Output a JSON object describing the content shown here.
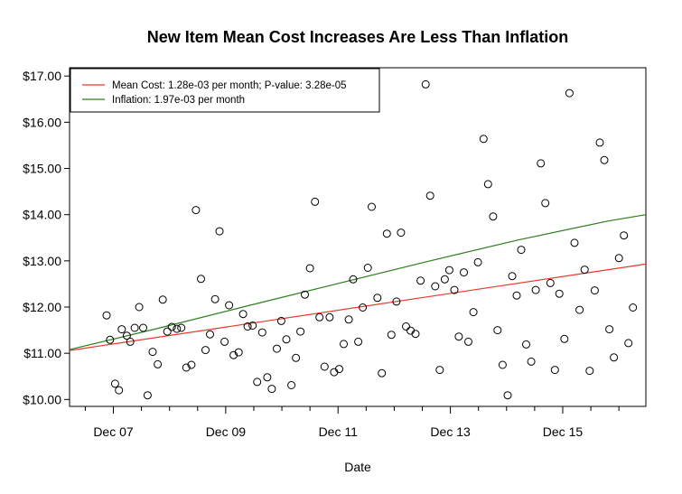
{
  "chart_data": {
    "type": "scatter",
    "title": "New Item Mean Cost Increases Are Less Than Inflation",
    "xlabel": "Date",
    "ylabel": "",
    "x_unit": "months",
    "xlim": [
      -0.78,
      9.48
    ],
    "ylim": [
      9.85,
      17.18
    ],
    "x_ticks": [
      {
        "value": 0,
        "label": "Dec 07"
      },
      {
        "value": 2,
        "label": "Dec 09"
      },
      {
        "value": 4,
        "label": "Dec 11"
      },
      {
        "value": 6,
        "label": "Dec 13"
      },
      {
        "value": 8,
        "label": "Dec 15"
      }
    ],
    "x_minor_ticks": [
      -0.5,
      0.5,
      1,
      1.5,
      2.5,
      3,
      3.5,
      4.5,
      5,
      5.5,
      6.5,
      7,
      7.5,
      8.5,
      9
    ],
    "y_ticks": [
      {
        "value": 10,
        "label": "$10.00"
      },
      {
        "value": 11,
        "label": "$11.00"
      },
      {
        "value": 12,
        "label": "$12.00"
      },
      {
        "value": 13,
        "label": "$13.00"
      },
      {
        "value": 14,
        "label": "$14.00"
      },
      {
        "value": 15,
        "label": "$15.00"
      },
      {
        "value": 16,
        "label": "$16.00"
      },
      {
        "value": 17,
        "label": "$17.00"
      }
    ],
    "legend": {
      "position": "top-left",
      "entries": [
        {
          "label": "Mean Cost: 1.28e-03 per month; P-value: 3.28e-05",
          "color": "#e8382c"
        },
        {
          "label": "Inflation: 1.97e-03 per month",
          "color": "#2e7d1e"
        }
      ]
    },
    "series": [
      {
        "kind": "points",
        "marker": "open-circle",
        "color": "#000000",
        "points": [
          [
            -0.12,
            11.82
          ],
          [
            -0.06,
            11.29
          ],
          [
            0.03,
            10.34
          ],
          [
            0.1,
            10.2
          ],
          [
            0.15,
            11.52
          ],
          [
            0.24,
            11.38
          ],
          [
            0.3,
            11.25
          ],
          [
            0.38,
            11.55
          ],
          [
            0.46,
            12.0
          ],
          [
            0.53,
            11.55
          ],
          [
            0.61,
            10.09
          ],
          [
            0.7,
            11.03
          ],
          [
            0.79,
            10.76
          ],
          [
            0.88,
            12.16
          ],
          [
            0.96,
            11.47
          ],
          [
            1.04,
            11.57
          ],
          [
            1.13,
            11.53
          ],
          [
            1.21,
            11.55
          ],
          [
            1.3,
            10.69
          ],
          [
            1.39,
            10.75
          ],
          [
            1.47,
            14.1
          ],
          [
            1.56,
            12.61
          ],
          [
            1.64,
            11.07
          ],
          [
            1.72,
            11.41
          ],
          [
            1.81,
            12.17
          ],
          [
            1.89,
            13.64
          ],
          [
            1.98,
            11.25
          ],
          [
            2.06,
            12.04
          ],
          [
            2.14,
            10.96
          ],
          [
            2.23,
            11.02
          ],
          [
            2.31,
            11.85
          ],
          [
            2.39,
            11.58
          ],
          [
            2.48,
            11.6
          ],
          [
            2.56,
            10.38
          ],
          [
            2.65,
            11.45
          ],
          [
            2.74,
            10.48
          ],
          [
            2.82,
            10.23
          ],
          [
            2.91,
            11.1
          ],
          [
            2.99,
            11.7
          ],
          [
            3.08,
            11.3
          ],
          [
            3.17,
            10.31
          ],
          [
            3.25,
            10.9
          ],
          [
            3.33,
            11.47
          ],
          [
            3.41,
            12.27
          ],
          [
            3.5,
            12.84
          ],
          [
            3.59,
            14.28
          ],
          [
            3.67,
            11.78
          ],
          [
            3.76,
            10.71
          ],
          [
            3.85,
            11.78
          ],
          [
            3.93,
            10.59
          ],
          [
            4.02,
            10.66
          ],
          [
            4.1,
            11.2
          ],
          [
            4.19,
            11.73
          ],
          [
            4.27,
            12.6
          ],
          [
            4.36,
            11.25
          ],
          [
            4.44,
            11.99
          ],
          [
            4.53,
            12.85
          ],
          [
            4.6,
            14.17
          ],
          [
            4.7,
            12.2
          ],
          [
            4.78,
            10.57
          ],
          [
            4.87,
            13.59
          ],
          [
            4.95,
            11.4
          ],
          [
            5.04,
            12.12
          ],
          [
            5.12,
            13.61
          ],
          [
            5.21,
            11.58
          ],
          [
            5.29,
            11.49
          ],
          [
            5.38,
            11.42
          ],
          [
            5.47,
            12.57
          ],
          [
            5.56,
            16.82
          ],
          [
            5.64,
            14.41
          ],
          [
            5.73,
            12.45
          ],
          [
            5.81,
            10.64
          ],
          [
            5.9,
            12.6
          ],
          [
            5.98,
            12.8
          ],
          [
            6.07,
            12.37
          ],
          [
            6.15,
            11.36
          ],
          [
            6.24,
            12.75
          ],
          [
            6.32,
            11.25
          ],
          [
            6.41,
            11.89
          ],
          [
            6.49,
            12.97
          ],
          [
            6.59,
            15.64
          ],
          [
            6.67,
            14.66
          ],
          [
            6.76,
            13.96
          ],
          [
            6.84,
            11.5
          ],
          [
            6.93,
            10.75
          ],
          [
            7.02,
            10.09
          ],
          [
            7.1,
            12.67
          ],
          [
            7.18,
            12.25
          ],
          [
            7.26,
            13.24
          ],
          [
            7.35,
            11.19
          ],
          [
            7.44,
            10.82
          ],
          [
            7.52,
            12.37
          ],
          [
            7.61,
            15.11
          ],
          [
            7.69,
            14.25
          ],
          [
            7.78,
            12.52
          ],
          [
            7.86,
            10.64
          ],
          [
            7.94,
            12.29
          ],
          [
            8.03,
            11.31
          ],
          [
            8.12,
            16.63
          ],
          [
            8.21,
            13.39
          ],
          [
            8.3,
            11.94
          ],
          [
            8.39,
            12.81
          ],
          [
            8.48,
            10.62
          ],
          [
            8.57,
            12.36
          ],
          [
            8.66,
            15.56
          ],
          [
            8.74,
            15.18
          ],
          [
            8.83,
            11.52
          ],
          [
            8.91,
            10.91
          ],
          [
            9.0,
            13.06
          ],
          [
            9.09,
            13.55
          ],
          [
            9.17,
            11.22
          ],
          [
            9.25,
            11.99
          ]
        ]
      },
      {
        "kind": "line",
        "name": "Mean Cost: 1.28e-03 per month; P-value: 3.28e-05",
        "color": "#e8382c",
        "x": [
          -0.78,
          9.48
        ],
        "y": [
          11.06,
          12.93
        ]
      },
      {
        "kind": "line",
        "name": "Inflation: 1.97e-03 per month",
        "color": "#2e7d1e",
        "curve": "exponential",
        "x": [
          -0.78,
          0.8,
          2.4,
          4.0,
          5.6,
          7.2,
          8.8,
          9.48
        ],
        "y": [
          11.08,
          11.54,
          12.03,
          12.51,
          12.99,
          13.45,
          13.86,
          14.0
        ]
      }
    ]
  }
}
